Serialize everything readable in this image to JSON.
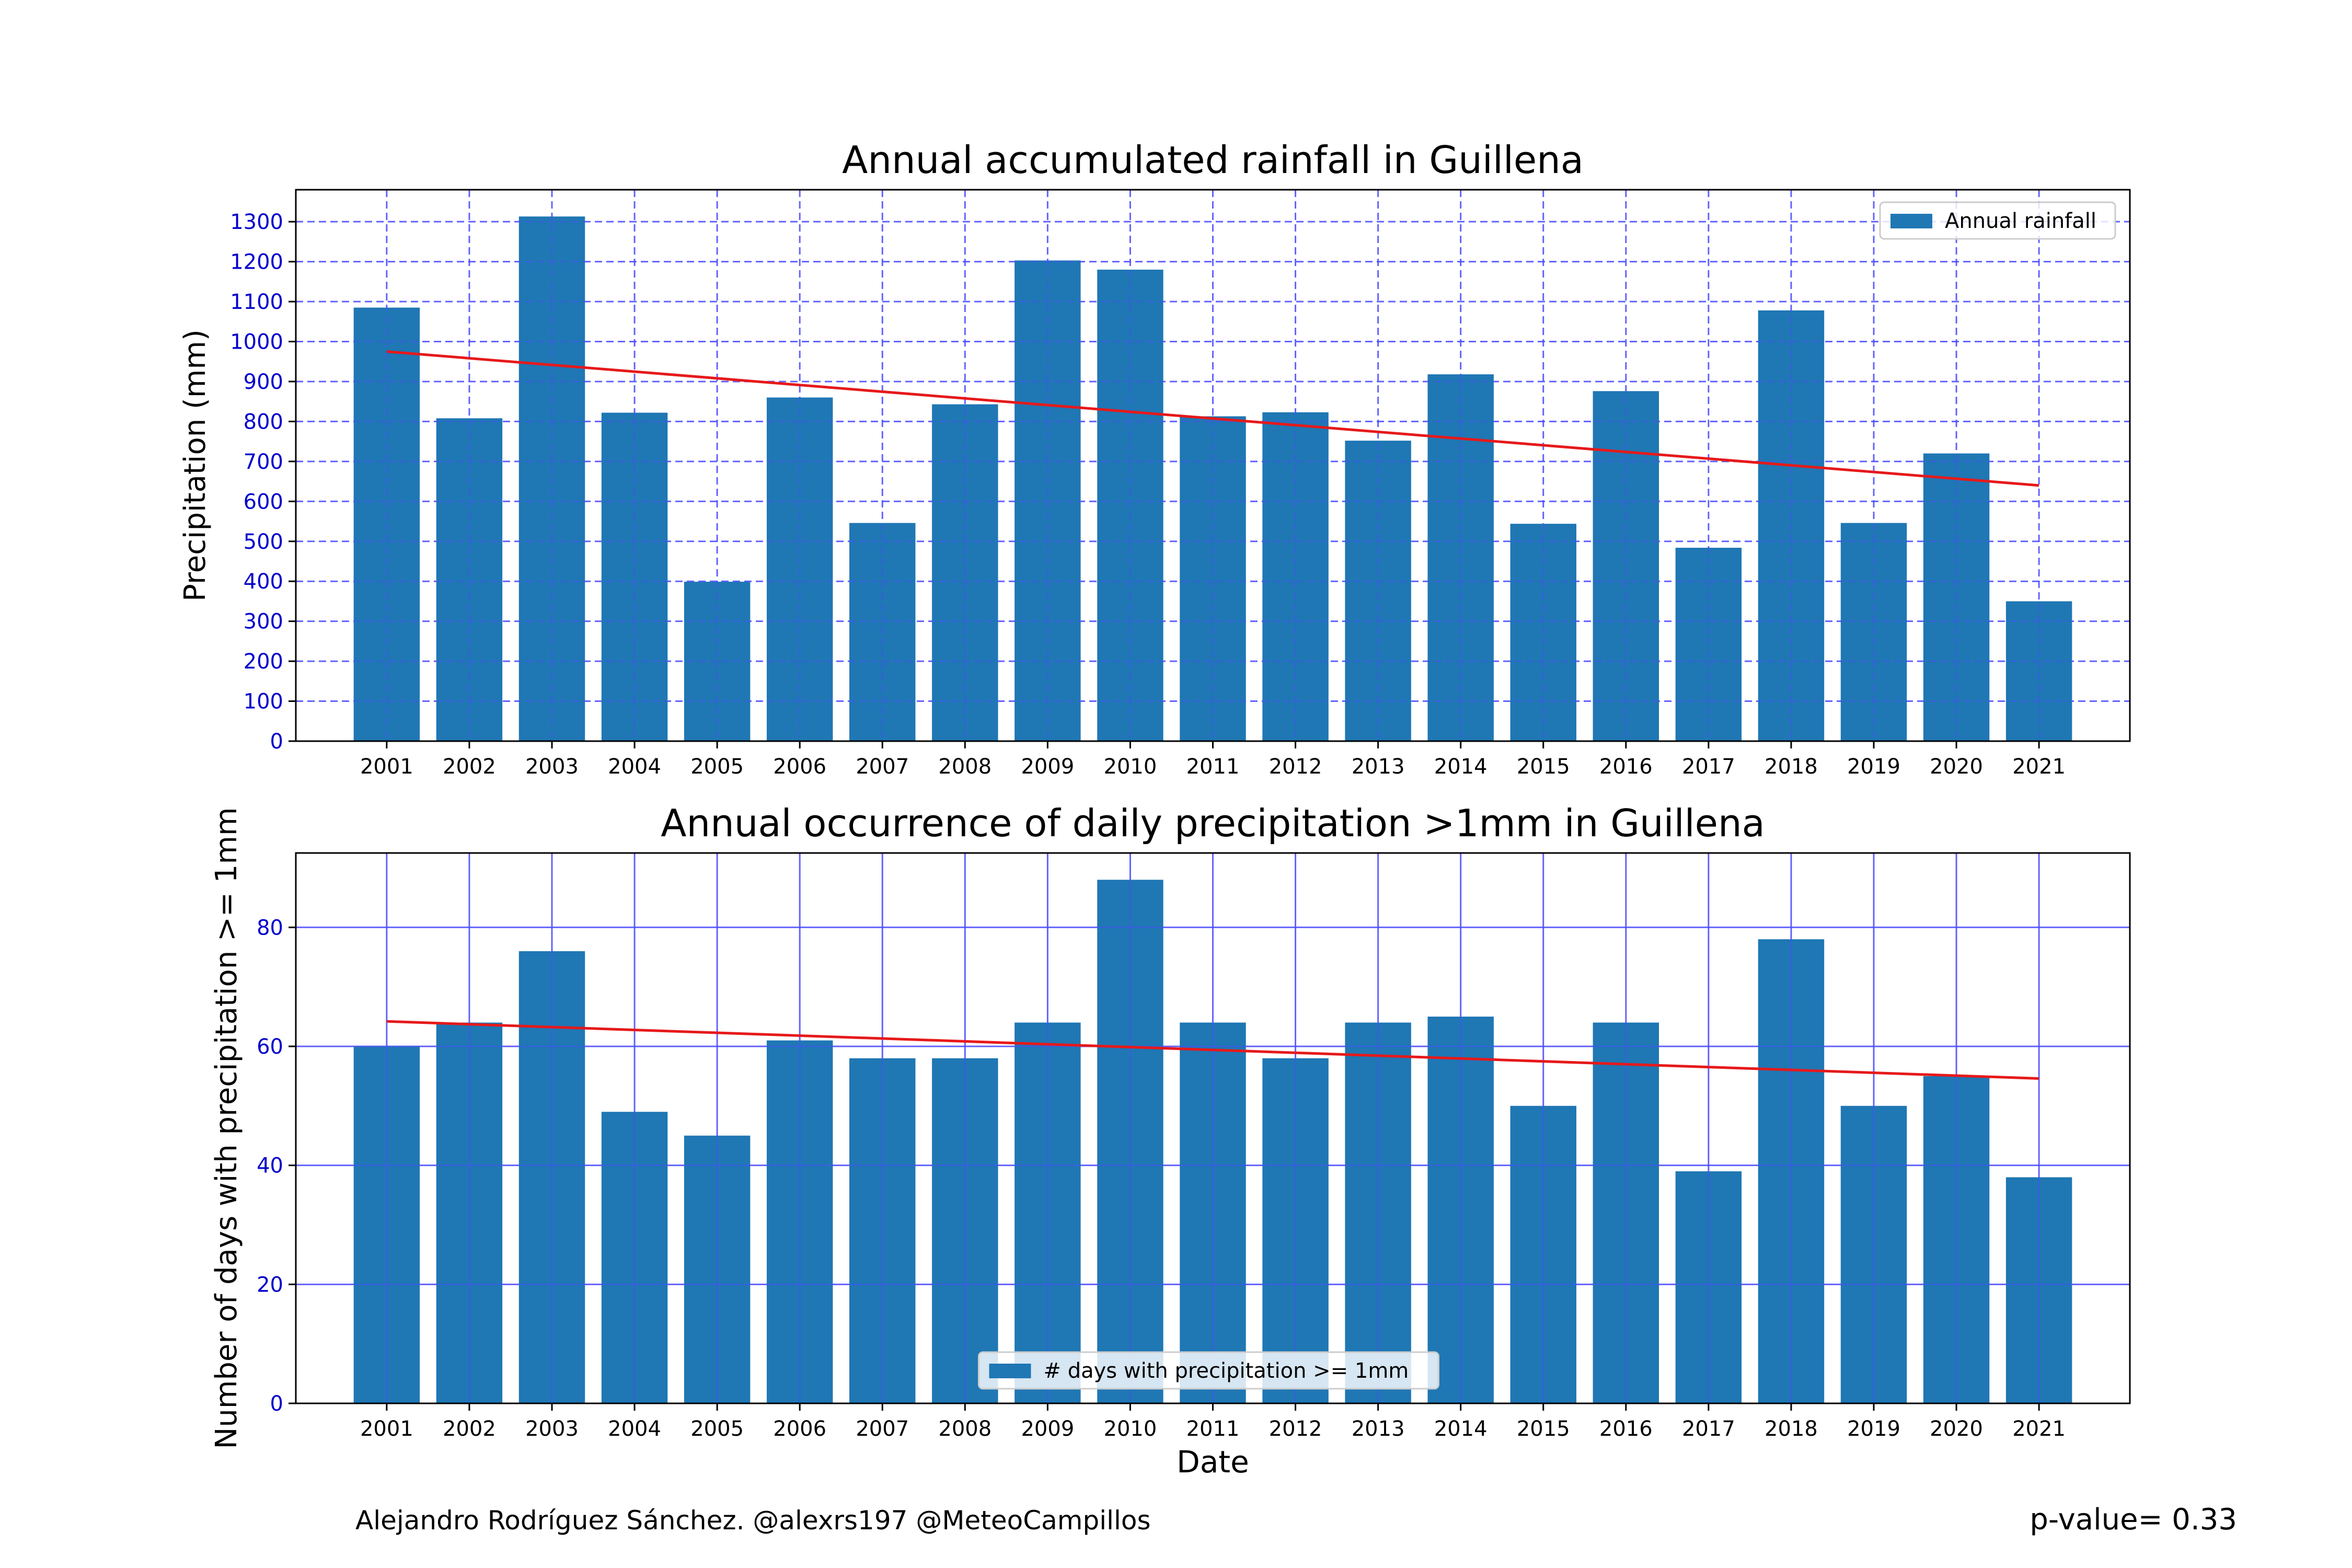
{
  "chart_data": [
    {
      "type": "bar",
      "title": "Annual accumulated rainfall in Guillena",
      "xlabel": "",
      "ylabel": "Precipitation (mm)",
      "categories": [
        "2001",
        "2002",
        "2003",
        "2004",
        "2005",
        "2006",
        "2007",
        "2008",
        "2009",
        "2010",
        "2011",
        "2012",
        "2013",
        "2014",
        "2015",
        "2016",
        "2017",
        "2018",
        "2019",
        "2020",
        "2021"
      ],
      "series": [
        {
          "name": "Annual rainfall",
          "values": [
            1085,
            808,
            1313,
            822,
            399,
            860,
            546,
            843,
            1203,
            1180,
            813,
            823,
            752,
            918,
            544,
            876,
            484,
            1078,
            546,
            720,
            350
          ]
        }
      ],
      "trend": {
        "start": 975,
        "end": 640
      },
      "ylim": [
        0,
        1380
      ],
      "yticks": [
        0,
        100,
        200,
        300,
        400,
        500,
        600,
        700,
        800,
        900,
        1000,
        1100,
        1200,
        1300
      ],
      "grid": true,
      "grid_style": "dashed",
      "legend_position": "top-right",
      "colors": {
        "bar": "#1f77b4",
        "trend": "#e6191a",
        "grid": "#4d4dff",
        "tick_label": "#0000cc"
      }
    },
    {
      "type": "bar",
      "title": "Annual occurrence of daily precipitation >1mm in Guillena",
      "xlabel": "Date",
      "ylabel": "Number of days with precipitation >= 1mm",
      "categories": [
        "2001",
        "2002",
        "2003",
        "2004",
        "2005",
        "2006",
        "2007",
        "2008",
        "2009",
        "2010",
        "2011",
        "2012",
        "2013",
        "2014",
        "2015",
        "2016",
        "2017",
        "2018",
        "2019",
        "2020",
        "2021"
      ],
      "series": [
        {
          "name": "# days with precipitation >= 1mm",
          "values": [
            60,
            64,
            76,
            49,
            45,
            61,
            58,
            58,
            64,
            88,
            64,
            58,
            64,
            65,
            50,
            64,
            39,
            78,
            50,
            55,
            38
          ]
        }
      ],
      "trend": {
        "start": 64.2,
        "end": 54.6
      },
      "ylim": [
        0,
        92.5
      ],
      "yticks": [
        0,
        20,
        40,
        60,
        80
      ],
      "grid": true,
      "grid_style": "solid",
      "legend_position": "bottom-center",
      "colors": {
        "bar": "#1f77b4",
        "trend": "#e6191a",
        "grid": "#4d4dff",
        "tick_label": "#0000cc"
      }
    }
  ],
  "footer": {
    "credit": "Alejandro Rodríguez Sánchez. @alexrs197 @MeteoCampillos",
    "pvalue": "p-value= 0.33"
  }
}
